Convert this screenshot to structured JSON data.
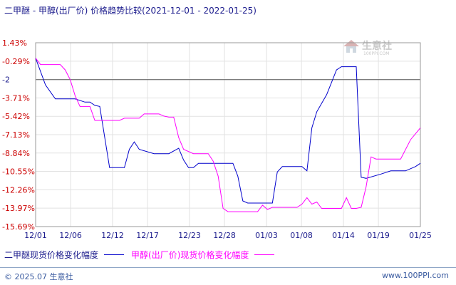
{
  "title": {
    "main": "二甲醚 - 甲醇(出厂价) 价格趋势比较",
    "range": "(2021-12-01 - 2022-01-25)"
  },
  "watermark": {
    "cn": "生意社",
    "url": "100PPI.COM"
  },
  "footer": {
    "left": "© 2025.07 生意社",
    "right": "www.100PPI.com"
  },
  "chart_data": {
    "type": "line",
    "y_ticks": [
      "1.43%",
      "-0.29%",
      "-2",
      "-3.71%",
      "-5.42%",
      "-7.13%",
      "-8.84%",
      "-10.55%",
      "-12.26%",
      "-13.97%",
      "-15.69%"
    ],
    "y_tick_values": [
      1.43,
      -0.29,
      -2.0,
      -3.71,
      -5.42,
      -7.13,
      -8.84,
      -10.55,
      -12.26,
      -13.97,
      -15.69
    ],
    "y_tick_colors": [
      "#cc0000",
      "#cc0000",
      "#1a1a8c",
      "#cc0000",
      "#cc0000",
      "#cc0000",
      "#cc0000",
      "#cc0000",
      "#cc0000",
      "#cc0000",
      "#cc0000"
    ],
    "ylim": [
      -15.69,
      1.43
    ],
    "reference_line": -2,
    "x_ticks": [
      "12/01",
      "12/06",
      "12/12",
      "12/17",
      "12/23",
      "12/28",
      "01/03",
      "01/08",
      "01/14",
      "01/19",
      "01/25"
    ],
    "x_tick_index": [
      0,
      5,
      11,
      16,
      22,
      27,
      33,
      38,
      44,
      49,
      55
    ],
    "x_count": 56,
    "grid": true,
    "series": [
      {
        "name": "二甲醚现货价格变化幅度",
        "color": "#0000cc",
        "points": [
          [
            0,
            0
          ],
          [
            2,
            -2.5
          ],
          [
            4,
            -3.8
          ],
          [
            8,
            -3.8
          ],
          [
            10,
            -4.1
          ],
          [
            11,
            -4.1
          ],
          [
            12,
            -4.4
          ],
          [
            13,
            -4.5
          ],
          [
            15,
            -10.2
          ],
          [
            18,
            -10.2
          ],
          [
            19,
            -8.5
          ],
          [
            20,
            -7.8
          ],
          [
            21,
            -8.5
          ],
          [
            24,
            -8.9
          ],
          [
            27,
            -8.9
          ],
          [
            29,
            -8.4
          ],
          [
            30,
            -9.5
          ],
          [
            31,
            -10.2
          ],
          [
            32,
            -10.2
          ],
          [
            33,
            -9.8
          ],
          [
            40,
            -9.8
          ],
          [
            41,
            -11.0
          ],
          [
            42,
            -13.3
          ],
          [
            43,
            -13.5
          ],
          [
            48,
            -13.5
          ],
          [
            49,
            -10.6
          ],
          [
            50,
            -10.1
          ],
          [
            54,
            -10.1
          ],
          [
            55,
            -10.5
          ],
          [
            56,
            -6.5
          ],
          [
            57,
            -5.0
          ],
          [
            59,
            -3.4
          ],
          [
            61,
            -1.1
          ],
          [
            62,
            -0.8
          ],
          [
            65,
            -0.8
          ],
          [
            66,
            -11.1
          ],
          [
            67,
            -11.2
          ],
          [
            70,
            -10.8
          ],
          [
            72,
            -10.5
          ],
          [
            75,
            -10.5
          ],
          [
            77,
            -10.1
          ],
          [
            78,
            -9.8
          ]
        ]
      },
      {
        "name": "甲醇(出厂价)现货价格变化幅度",
        "color": "#ff00ff",
        "points": [
          [
            0,
            0
          ],
          [
            1,
            -0.6
          ],
          [
            5,
            -0.6
          ],
          [
            6,
            -1.1
          ],
          [
            7,
            -2.0
          ],
          [
            8,
            -3.5
          ],
          [
            9,
            -4.5
          ],
          [
            11,
            -4.5
          ],
          [
            12,
            -5.8
          ],
          [
            15,
            -5.8
          ],
          [
            17,
            -5.8
          ],
          [
            18,
            -5.6
          ],
          [
            21,
            -5.6
          ],
          [
            22,
            -5.2
          ],
          [
            25,
            -5.2
          ],
          [
            26,
            -5.4
          ],
          [
            27,
            -5.5
          ],
          [
            28,
            -5.5
          ],
          [
            29,
            -7.4
          ],
          [
            30,
            -8.5
          ],
          [
            32,
            -8.9
          ],
          [
            35,
            -8.9
          ],
          [
            36,
            -9.6
          ],
          [
            37,
            -11.0
          ],
          [
            38,
            -14.0
          ],
          [
            39,
            -14.3
          ],
          [
            45,
            -14.3
          ],
          [
            46,
            -13.7
          ],
          [
            47,
            -14.1
          ],
          [
            48,
            -13.9
          ],
          [
            50,
            -13.9
          ],
          [
            53,
            -13.9
          ],
          [
            54,
            -13.6
          ],
          [
            55,
            -13.0
          ],
          [
            56,
            -13.6
          ],
          [
            57,
            -13.4
          ],
          [
            58,
            -14.0
          ],
          [
            60,
            -14.0
          ],
          [
            62,
            -14.0
          ],
          [
            63,
            -13.0
          ],
          [
            64,
            -14.0
          ],
          [
            65,
            -14.0
          ],
          [
            66,
            -13.9
          ],
          [
            67,
            -12.0
          ],
          [
            68,
            -9.2
          ],
          [
            69,
            -9.4
          ],
          [
            72,
            -9.4
          ],
          [
            74,
            -9.4
          ],
          [
            76,
            -7.6
          ],
          [
            78,
            -6.5
          ]
        ]
      }
    ]
  }
}
